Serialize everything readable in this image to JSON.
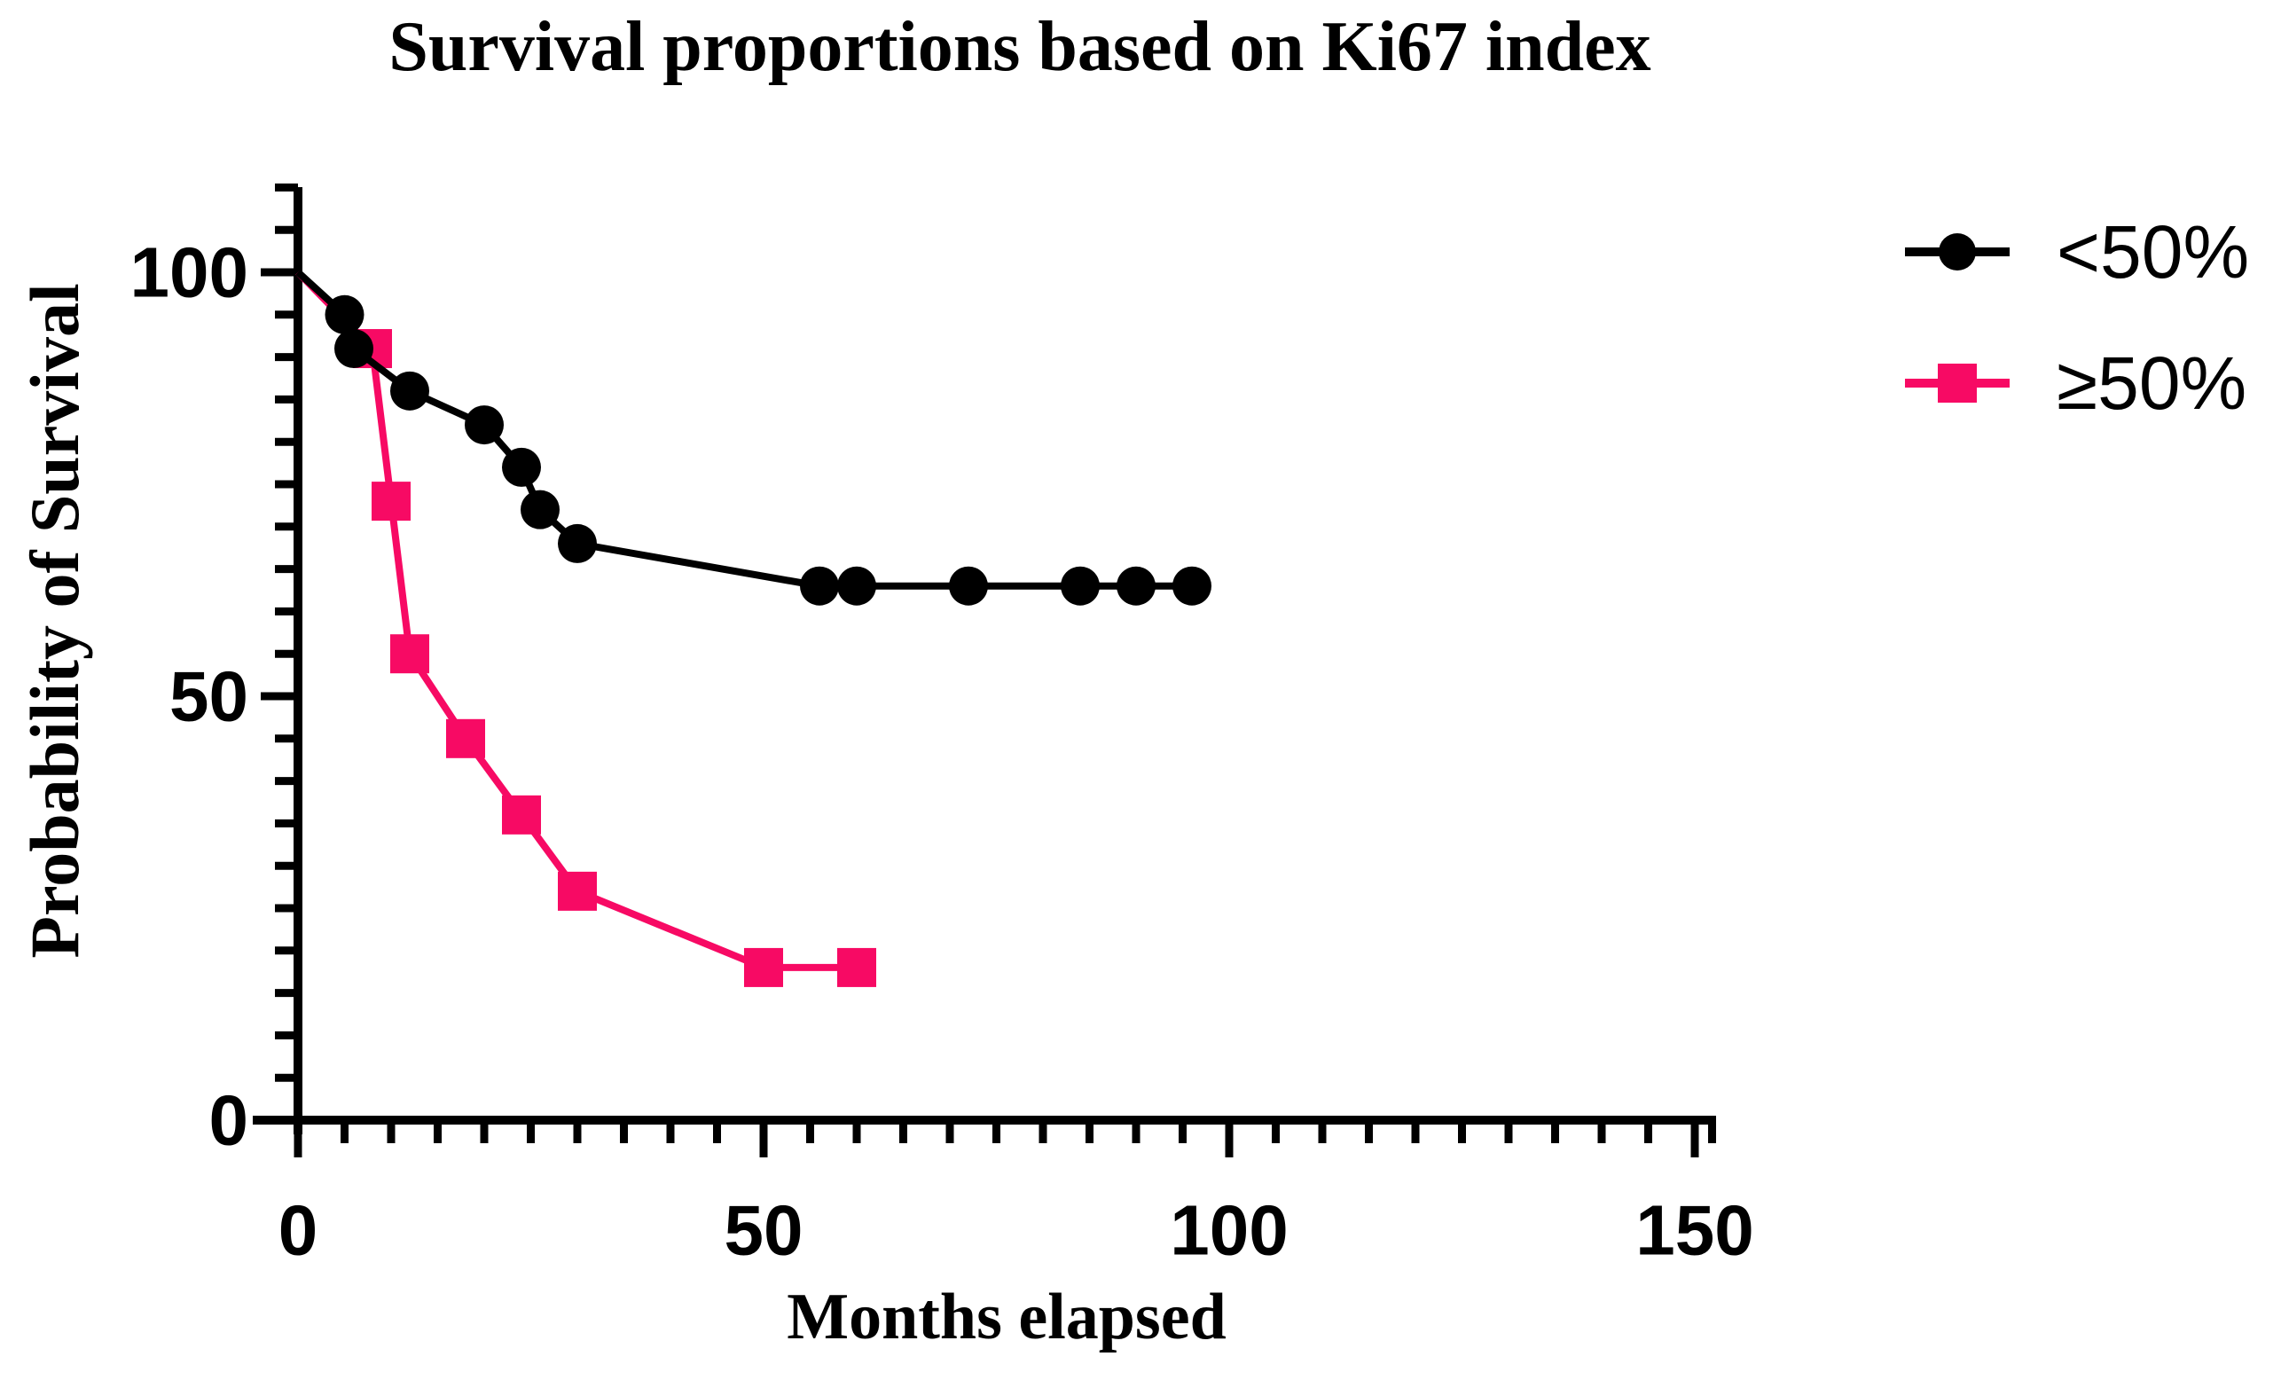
{
  "title": "Survival proportions based on Ki67 index",
  "legend": {
    "entries": [
      {
        "label": "<50%",
        "marker": "circle",
        "color": "#000000"
      },
      {
        "label": "≥50%",
        "marker": "square",
        "color": "#F70A64"
      }
    ]
  },
  "x_axis": {
    "label": "Months elapsed",
    "tick_labels": [
      "0",
      "50",
      "100",
      "150"
    ]
  },
  "y_axis": {
    "label": "Probability of Survival",
    "tick_labels": [
      "0",
      "50",
      "100"
    ]
  },
  "colors": {
    "series_lt50": "#000000",
    "series_ge50": "#F70A64",
    "axis": "#000000",
    "background": "#ffffff"
  },
  "chart_data": {
    "type": "line",
    "title": "Survival proportions based on Ki67 index",
    "xlabel": "Months elapsed",
    "ylabel": "Probability of Survival",
    "xlim": [
      0,
      152
    ],
    "ylim": [
      0,
      112
    ],
    "x_major_ticks": [
      0,
      50,
      100,
      150
    ],
    "x_minor_tick_step": 5,
    "y_major_ticks": [
      0,
      50,
      100
    ],
    "y_minor_tick_step": 5,
    "grid": false,
    "legend_position": "top-right",
    "series": [
      {
        "name": "<50%",
        "marker": "circle",
        "color": "#000000",
        "points": [
          [
            0,
            100
          ],
          [
            5,
            95
          ],
          [
            6,
            91
          ],
          [
            12,
            86
          ],
          [
            20,
            82
          ],
          [
            24,
            77
          ],
          [
            26,
            72
          ],
          [
            30,
            68
          ],
          [
            56,
            63
          ],
          [
            60,
            63
          ],
          [
            72,
            63
          ],
          [
            84,
            63
          ],
          [
            90,
            63
          ],
          [
            96,
            63
          ]
        ]
      },
      {
        "name": "≥50%",
        "marker": "square",
        "color": "#F70A64",
        "points": [
          [
            0,
            100
          ],
          [
            8,
            91
          ],
          [
            10,
            73
          ],
          [
            12,
            55
          ],
          [
            18,
            45
          ],
          [
            24,
            36
          ],
          [
            30,
            27
          ],
          [
            50,
            18
          ],
          [
            60,
            18
          ]
        ]
      }
    ]
  }
}
